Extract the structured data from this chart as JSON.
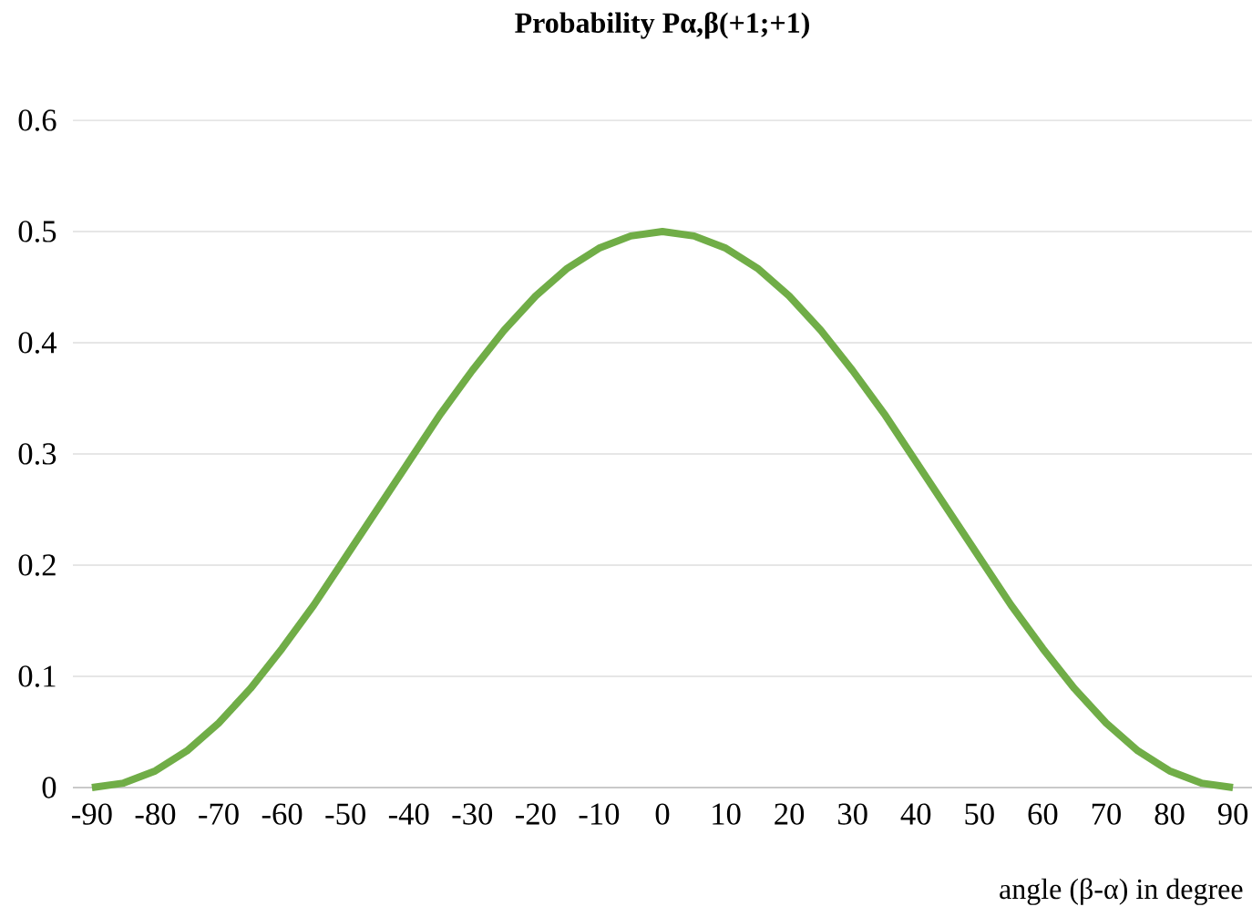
{
  "chart_data": {
    "type": "line",
    "title": "Probability Pα,β(+1;+1)",
    "xlabel": "angle (β-α) in degree",
    "x": [
      -90,
      -85,
      -80,
      -75,
      -70,
      -65,
      -60,
      -55,
      -50,
      -45,
      -40,
      -35,
      -30,
      -25,
      -20,
      -15,
      -10,
      -5,
      0,
      5,
      10,
      15,
      20,
      25,
      30,
      35,
      40,
      45,
      50,
      55,
      60,
      65,
      70,
      75,
      80,
      85,
      90
    ],
    "series": [
      {
        "color": "#70ad47",
        "values": [
          0,
          0.004,
          0.015,
          0.033,
          0.058,
          0.089,
          0.125,
          0.164,
          0.207,
          0.25,
          0.293,
          0.336,
          0.375,
          0.411,
          0.442,
          0.467,
          0.485,
          0.496,
          0.5,
          0.496,
          0.485,
          0.467,
          0.442,
          0.411,
          0.375,
          0.336,
          0.293,
          0.25,
          0.207,
          0.164,
          0.125,
          0.089,
          0.058,
          0.033,
          0.015,
          0.004,
          0
        ]
      }
    ],
    "xlim": [
      -93,
      93
    ],
    "xticks": [
      -90,
      -80,
      -70,
      -60,
      -50,
      -40,
      -30,
      -20,
      -10,
      0,
      10,
      20,
      30,
      40,
      50,
      60,
      70,
      80,
      90
    ],
    "ylim": [
      0,
      0.6
    ],
    "yticks": [
      0,
      0.1,
      0.2,
      0.3,
      0.4,
      0.5,
      0.6
    ],
    "grid": "y"
  }
}
